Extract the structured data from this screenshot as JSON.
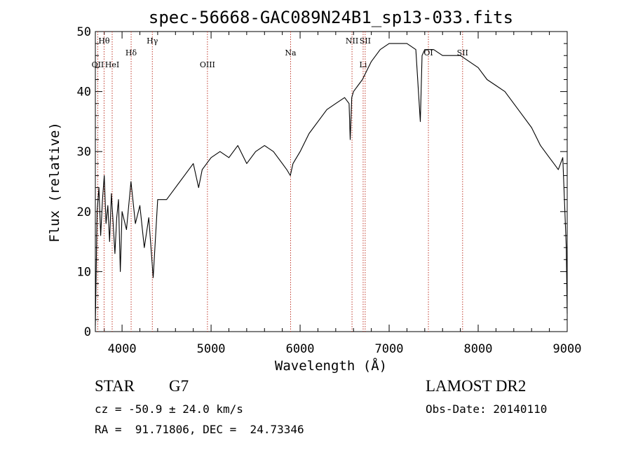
{
  "chart_data": {
    "type": "line",
    "title": "spec-56668-GAC089N24B1_sp13-033.fits",
    "xlabel": "Wavelength (Å)",
    "ylabel": "Flux (relative)",
    "xlim": [
      3700,
      9000
    ],
    "ylim": [
      0,
      50
    ],
    "x_ticks": [
      4000,
      5000,
      6000,
      7000,
      8000,
      9000
    ],
    "y_ticks": [
      0,
      10,
      20,
      30,
      40,
      50
    ],
    "grid": false,
    "series": [
      {
        "x": [
          3700,
          3720,
          3740,
          3760,
          3780,
          3800,
          3820,
          3840,
          3860,
          3880,
          3900,
          3920,
          3940,
          3960,
          3980,
          4000,
          4050,
          4100,
          4150,
          4200,
          4250,
          4300,
          4350,
          4400,
          4500,
          4600,
          4700,
          4800,
          4860,
          4900,
          5000,
          5100,
          5200,
          5300,
          5400,
          5500,
          5600,
          5700,
          5800,
          5850,
          5890,
          5920,
          6000,
          6100,
          6200,
          6300,
          6400,
          6500,
          6550,
          6563,
          6580,
          6600,
          6700,
          6800,
          6900,
          7000,
          7100,
          7200,
          7300,
          7350,
          7370,
          7400,
          7500,
          7600,
          7700,
          7800,
          7900,
          8000,
          8100,
          8200,
          8300,
          8400,
          8500,
          8600,
          8700,
          8800,
          8850,
          8900,
          8950,
          8990,
          9000
        ],
        "y": [
          1,
          20,
          24,
          16,
          22,
          26,
          18,
          21,
          15,
          23,
          18,
          13,
          19,
          22,
          10,
          20,
          17,
          25,
          18,
          21,
          14,
          19,
          9,
          22,
          22,
          24,
          26,
          28,
          24,
          27,
          29,
          30,
          29,
          31,
          28,
          30,
          31,
          30,
          28,
          27,
          26,
          28,
          30,
          33,
          35,
          37,
          38,
          39,
          38,
          32,
          39,
          40,
          42,
          45,
          47,
          48,
          48,
          48,
          47,
          35,
          46,
          47,
          47,
          46,
          46,
          46,
          45,
          44,
          42,
          41,
          40,
          38,
          36,
          34,
          31,
          29,
          28,
          27,
          29,
          14,
          3
        ]
      }
    ],
    "lines": [
      {
        "label": "Hθ",
        "x": 3798,
        "row": 1
      },
      {
        "label": "OII",
        "x": 3727,
        "row": 3
      },
      {
        "label": "HeI",
        "x": 3889,
        "row": 3
      },
      {
        "label": "Hδ",
        "x": 4102,
        "row": 2
      },
      {
        "label": "Hγ",
        "x": 4340,
        "row": 1
      },
      {
        "label": "OIII",
        "x": 4959,
        "row": 3
      },
      {
        "label": "Na",
        "x": 5893,
        "row": 2
      },
      {
        "label": "NII",
        "x": 6583,
        "row": 1
      },
      {
        "label": "Li",
        "x": 6708,
        "row": 3
      },
      {
        "label": "SII",
        "x": 6731,
        "row": 1
      },
      {
        "label": "OI",
        "x": 7441,
        "row": 2
      },
      {
        "label": "SII",
        "x": 7825,
        "row": 2
      }
    ]
  },
  "info": {
    "object_class": "STAR",
    "subclass": "G7",
    "survey": "LAMOST DR2",
    "cz_line": "cz = -50.9 ± 24.0 km/s",
    "obs_date_line": "Obs-Date: 20140110",
    "coords_line": "RA =  91.71806, DEC =  24.73346"
  }
}
